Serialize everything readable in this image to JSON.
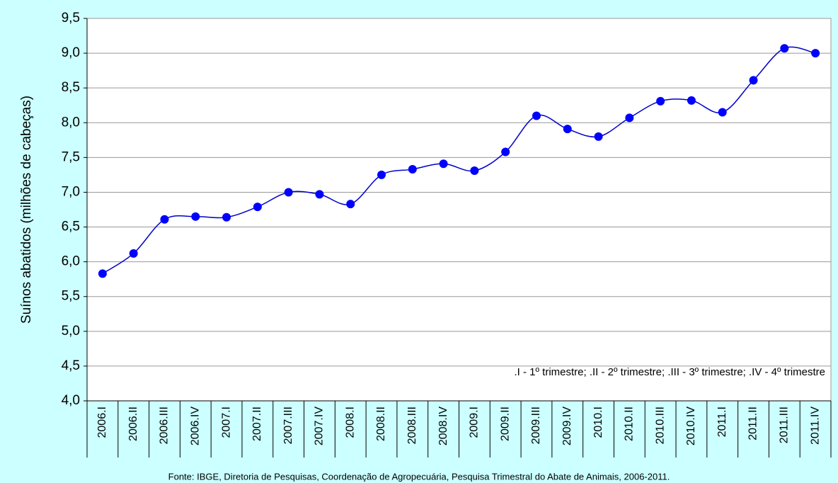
{
  "chart_data": {
    "type": "line",
    "y_label": "Suínos abatidos (milhões de cabeças)",
    "annotation": ".I - 1º trimestre; .II - 2º trimestre; .III - 3º trimestre; .IV - 4º trimestre",
    "source": "Fonte: IBGE, Diretoria de Pesquisas, Coordenação de Agropecuária, Pesquisa Trimestral do Abate de Animais, 2006-2011.",
    "categories": [
      "2006.I",
      "2006.II",
      "2006.III",
      "2006.IV",
      "2007.I",
      "2007.II",
      "2007.III",
      "2007.IV",
      "2008.I",
      "2008.II",
      "2008.III",
      "2008.IV",
      "2009.I",
      "2009.II",
      "2009.III",
      "2009.IV",
      "2010.I",
      "2010.II",
      "2010.III",
      "2010.IV",
      "2011.I",
      "2011.II",
      "2011.III",
      "2011.IV"
    ],
    "values": [
      5.83,
      6.12,
      6.61,
      6.65,
      6.64,
      6.79,
      7.0,
      6.97,
      6.83,
      7.25,
      7.33,
      7.41,
      7.31,
      7.58,
      8.1,
      7.91,
      7.8,
      8.07,
      8.31,
      8.32,
      8.15,
      8.61,
      9.07,
      9.0
    ],
    "color": "#0000ff",
    "line_color": "#0000cc",
    "smooth": true,
    "ylim": [
      4.0,
      9.5
    ],
    "yticks": [
      {
        "value": 4.0,
        "label": "4,0"
      },
      {
        "value": 4.5,
        "label": "4,5"
      },
      {
        "value": 5.0,
        "label": "5,0"
      },
      {
        "value": 5.5,
        "label": "5,5"
      },
      {
        "value": 6.0,
        "label": "6,0"
      },
      {
        "value": 6.5,
        "label": "6,5"
      },
      {
        "value": 7.0,
        "label": "7,0"
      },
      {
        "value": 7.5,
        "label": "7,5"
      },
      {
        "value": 8.0,
        "label": "8,0"
      },
      {
        "value": 8.5,
        "label": "8,5"
      },
      {
        "value": 9.0,
        "label": "9,0"
      },
      {
        "value": 9.5,
        "label": "9,5"
      }
    ],
    "grid": true
  }
}
